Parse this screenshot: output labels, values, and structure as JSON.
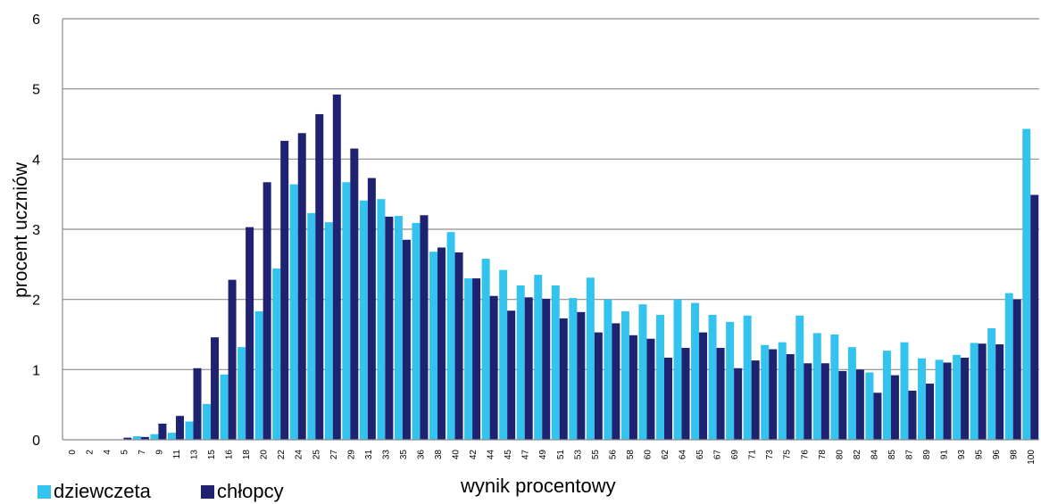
{
  "chart_data": {
    "type": "bar",
    "title": "",
    "xlabel": "wynik procentowy",
    "ylabel": "procent uczniów",
    "ylim": [
      0,
      6
    ],
    "yticks": [
      0,
      1,
      2,
      3,
      4,
      5,
      6
    ],
    "grid": true,
    "legend_position": "bottom-left",
    "colors": {
      "dziewczeta": "#33c3ee",
      "chlopcy": "#1f2270",
      "grid": "#8c8c8c",
      "axis": "#8c8c8c"
    },
    "categories": [
      "0",
      "2",
      "4",
      "5",
      "7",
      "9",
      "11",
      "13",
      "15",
      "16",
      "18",
      "20",
      "22",
      "24",
      "25",
      "27",
      "29",
      "31",
      "33",
      "35",
      "36",
      "38",
      "40",
      "42",
      "44",
      "45",
      "47",
      "49",
      "51",
      "53",
      "55",
      "56",
      "58",
      "60",
      "62",
      "64",
      "65",
      "67",
      "69",
      "71",
      "73",
      "75",
      "76",
      "78",
      "80",
      "82",
      "84",
      "85",
      "87",
      "89",
      "91",
      "93",
      "95",
      "96",
      "98",
      "100"
    ],
    "series": [
      {
        "name": "dziewczeta",
        "values": [
          0,
          0,
          0,
          0,
          0.05,
          0.08,
          0.1,
          0.26,
          0.51,
          0.93,
          1.32,
          1.83,
          2.44,
          3.64,
          3.23,
          3.1,
          3.67,
          3.41,
          3.43,
          3.19,
          3.09,
          2.68,
          2.96,
          2.3,
          2.58,
          2.42,
          2.2,
          2.35,
          2.2,
          2.02,
          2.31,
          2.0,
          1.83,
          1.93,
          1.78,
          2.0,
          1.95,
          1.78,
          1.68,
          1.77,
          1.35,
          1.39,
          1.77,
          1.52,
          1.5,
          1.32,
          0.96,
          1.27,
          1.39,
          1.16,
          1.14,
          1.21,
          1.38,
          1.59,
          2.09,
          4.43
        ]
      },
      {
        "name": "chłopcy",
        "values": [
          0,
          0,
          0,
          0.03,
          0.04,
          0.23,
          0.34,
          1.02,
          1.46,
          2.28,
          3.03,
          3.67,
          4.26,
          4.37,
          4.64,
          4.92,
          4.15,
          3.73,
          3.18,
          2.85,
          3.2,
          2.74,
          2.67,
          2.3,
          2.05,
          1.84,
          2.03,
          2.01,
          1.73,
          1.82,
          1.53,
          1.66,
          1.49,
          1.44,
          1.17,
          1.31,
          1.53,
          1.31,
          1.02,
          1.13,
          1.29,
          1.22,
          1.09,
          1.09,
          0.98,
          1.0,
          0.67,
          0.92,
          0.7,
          0.8,
          1.1,
          1.17,
          1.37,
          1.36,
          2.0,
          3.49
        ]
      }
    ]
  },
  "legend": {
    "items": [
      {
        "label": "dziewczeta",
        "color": "#33c3ee"
      },
      {
        "label": "chłopcy",
        "color": "#1f2270"
      }
    ]
  }
}
